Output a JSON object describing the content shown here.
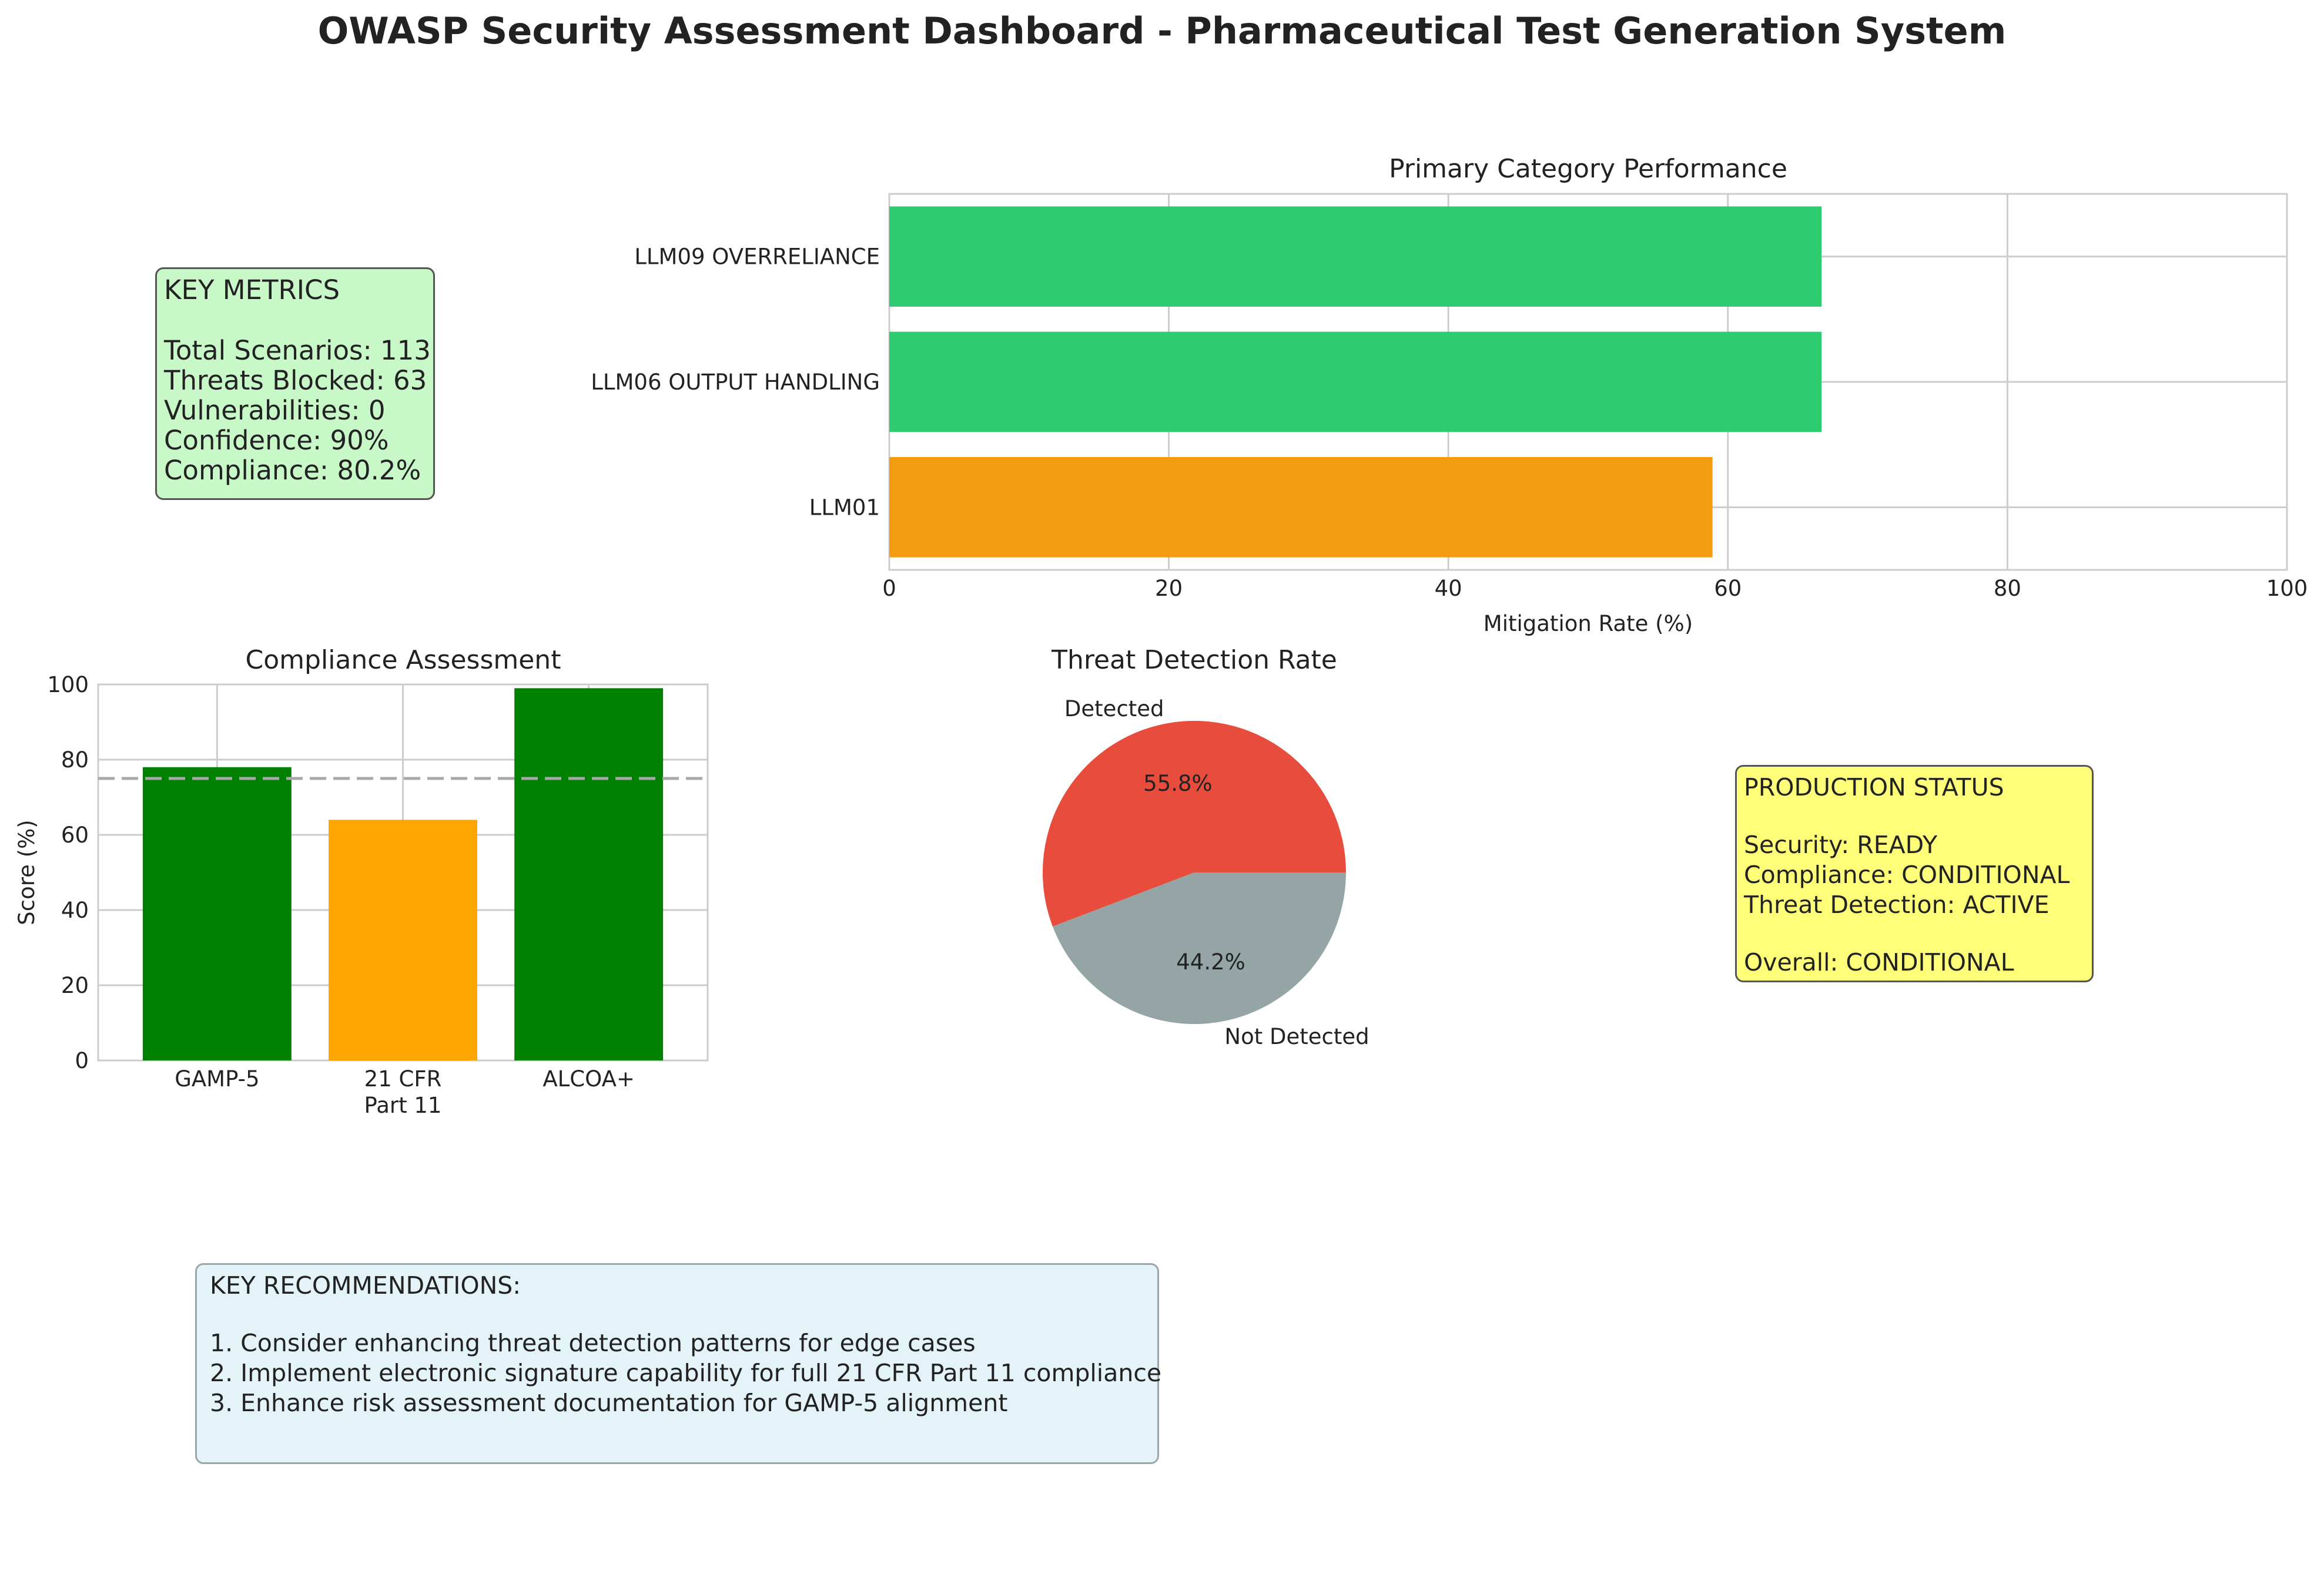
{
  "title": "OWASP Security Assessment Dashboard - Pharmaceutical Test Generation System",
  "colors": {
    "green_bar": "#2ecc71",
    "orange_bar": "#f39c12",
    "compliance_green": "#008000",
    "compliance_orange": "#ffa500",
    "pie_detected": "#e74c3c",
    "pie_not_detected": "#95a5a6",
    "threshold_line": "#a9a9a9",
    "metrics_box": "#c8f7c8",
    "status_box": "#ffff7a",
    "recs_box": "#e4f3f7"
  },
  "key_metrics": {
    "title": "KEY METRICS",
    "lines": [
      "Total Scenarios: 113",
      "Threats Blocked: 63",
      "Vulnerabilities: 0",
      "Confidence: 90%",
      "Compliance: 80.2%"
    ]
  },
  "production_status": {
    "title": "PRODUCTION STATUS",
    "lines": [
      "Security: READY",
      "Compliance: CONDITIONAL",
      "Threat Detection: ACTIVE"
    ],
    "overall": "Overall: CONDITIONAL"
  },
  "recommendations": {
    "title": "KEY RECOMMENDATIONS:",
    "items": [
      "1. Consider enhancing threat detection patterns for edge cases",
      "2. Implement electronic signature capability for full 21 CFR Part 11 compliance",
      "3. Enhance risk assessment documentation for GAMP-5 alignment"
    ]
  },
  "chart_data": [
    {
      "type": "bar",
      "orientation": "horizontal",
      "title": "Primary Category Performance",
      "xlabel": "Mitigation Rate (%)",
      "ylabel": "",
      "xlim": [
        0,
        100
      ],
      "xticks": [
        0,
        20,
        40,
        60,
        80,
        100
      ],
      "categories": [
        "LLM09 OVERRELIANCE",
        "LLM06 OUTPUT HANDLING",
        "LLM01"
      ],
      "values": [
        66.7,
        66.7,
        58.9
      ],
      "bar_colors": [
        "#2ecc71",
        "#2ecc71",
        "#f39c12"
      ],
      "grid": true
    },
    {
      "type": "bar",
      "title": "Compliance Assessment",
      "xlabel": "",
      "ylabel": "Score (%)",
      "ylim": [
        0,
        100
      ],
      "yticks": [
        0,
        20,
        40,
        60,
        80,
        100
      ],
      "categories": [
        [
          "GAMP-5"
        ],
        [
          "21 CFR",
          "Part 11"
        ],
        [
          "ALCOA+"
        ]
      ],
      "values": [
        78,
        64,
        99
      ],
      "bar_colors": [
        "#008000",
        "#ffa500",
        "#008000"
      ],
      "threshold": 75,
      "grid": true
    },
    {
      "type": "pie",
      "title": "Threat Detection Rate",
      "labels": [
        "Detected",
        "Not Detected"
      ],
      "values": [
        55.8,
        44.2
      ],
      "value_labels": [
        "55.8%",
        "44.2%"
      ],
      "colors": [
        "#e74c3c",
        "#95a5a6"
      ],
      "start_angle": 0
    }
  ]
}
